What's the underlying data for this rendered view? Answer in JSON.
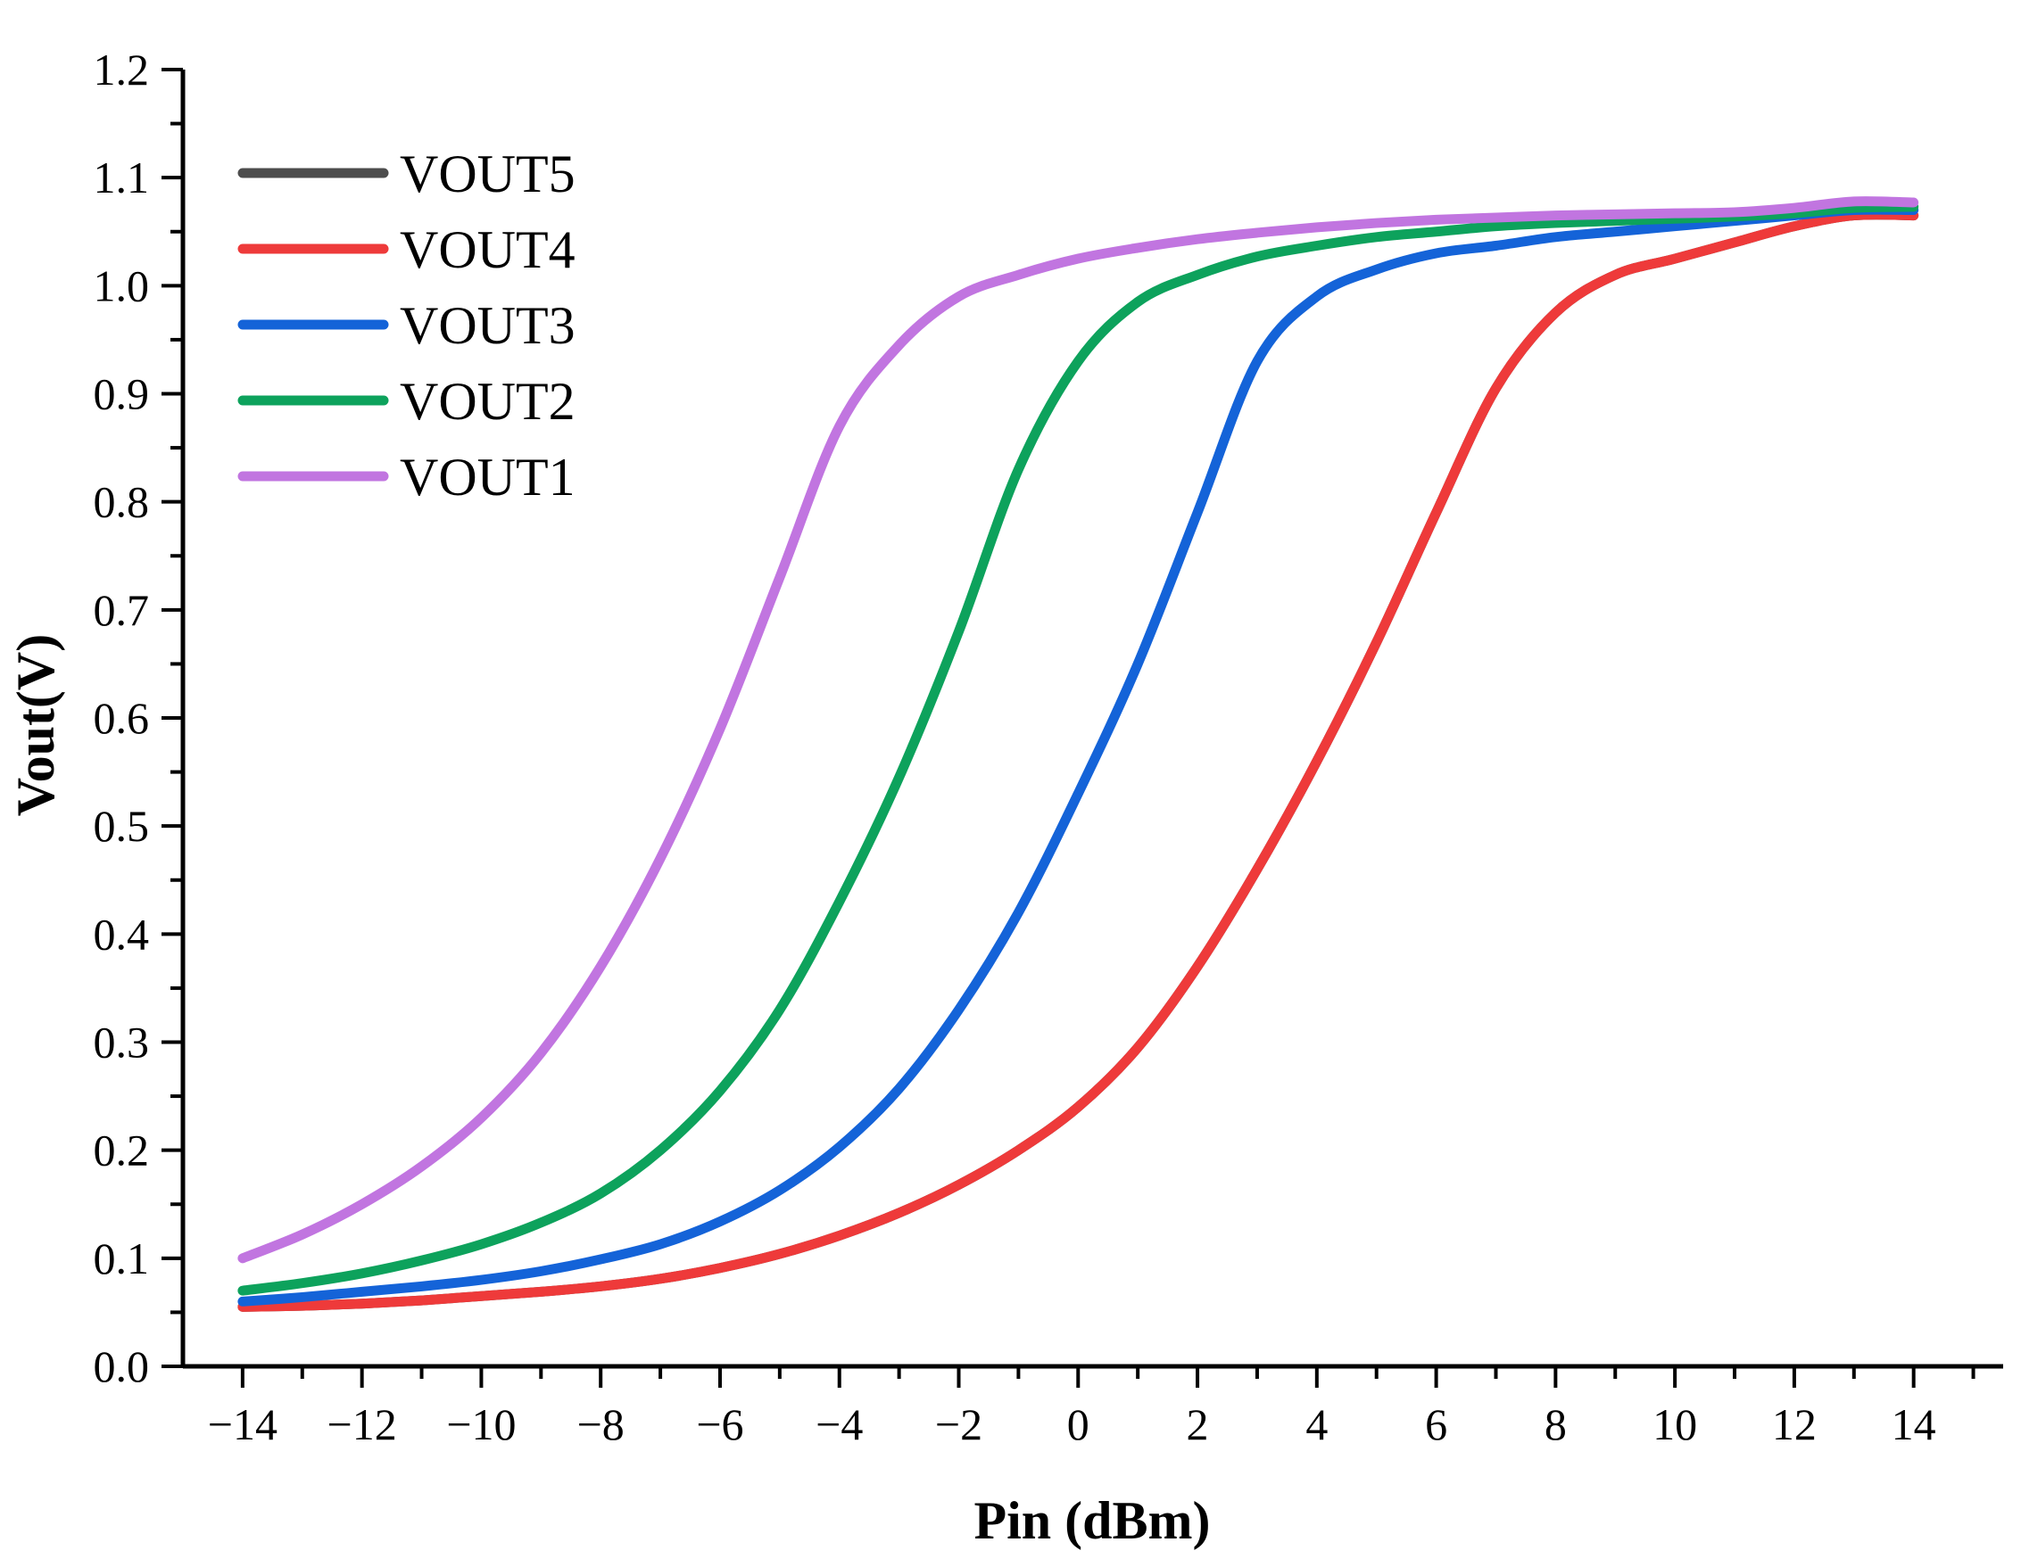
{
  "chart_data": {
    "type": "line",
    "title": "",
    "xlabel": "Pin (dBm)",
    "ylabel": "Vout(V)",
    "xlim": [
      -15,
      15.5
    ],
    "ylim": [
      0.0,
      1.2
    ],
    "xticks": [
      -14,
      -12,
      -10,
      -8,
      -6,
      -4,
      -2,
      0,
      2,
      4,
      6,
      8,
      10,
      12,
      14
    ],
    "xtick_labels": [
      "−14",
      "−12",
      "−10",
      "−8",
      "−6",
      "−4",
      "−2",
      "0",
      "2",
      "4",
      "6",
      "8",
      "10",
      "12",
      "14"
    ],
    "yticks": [
      0.0,
      0.1,
      0.2,
      0.3,
      0.4,
      0.5,
      0.6,
      0.7,
      0.8,
      0.9,
      1.0,
      1.1,
      1.2
    ],
    "ytick_labels": [
      "0.0",
      "0.1",
      "0.2",
      "0.3",
      "0.4",
      "0.5",
      "0.6",
      "0.7",
      "0.8",
      "0.9",
      "1.0",
      "1.1",
      "1.2"
    ],
    "grid": false,
    "legend_position": "top-left",
    "x": [
      -14,
      -13,
      -12,
      -11,
      -10,
      -9,
      -8,
      -7,
      -6,
      -5,
      -4,
      -3,
      -2,
      -1,
      0,
      1,
      2,
      3,
      4,
      5,
      6,
      7,
      8,
      9,
      10,
      11,
      12,
      13,
      14
    ],
    "series": [
      {
        "name": "VOUT5",
        "color": "#4d4d4d",
        "values": [
          0.055,
          0.056,
          0.058,
          0.061,
          0.065,
          0.069,
          0.074,
          0.081,
          0.091,
          0.104,
          0.121,
          0.142,
          0.168,
          0.2,
          0.24,
          0.295,
          0.37,
          0.46,
          0.56,
          0.67,
          0.79,
          0.905,
          0.975,
          1.01,
          1.025,
          1.04,
          1.055,
          1.065,
          1.065
        ]
      },
      {
        "name": "VOUT4",
        "color": "#ee3a3a",
        "values": [
          0.055,
          0.056,
          0.058,
          0.061,
          0.065,
          0.069,
          0.074,
          0.081,
          0.091,
          0.104,
          0.121,
          0.142,
          0.168,
          0.2,
          0.24,
          0.295,
          0.37,
          0.46,
          0.56,
          0.67,
          0.79,
          0.905,
          0.975,
          1.01,
          1.025,
          1.04,
          1.055,
          1.065,
          1.065
        ]
      },
      {
        "name": "VOUT3",
        "color": "#1463d8",
        "values": [
          0.06,
          0.064,
          0.069,
          0.074,
          0.08,
          0.088,
          0.099,
          0.113,
          0.134,
          0.163,
          0.203,
          0.257,
          0.33,
          0.42,
          0.53,
          0.65,
          0.79,
          0.93,
          0.99,
          1.015,
          1.03,
          1.037,
          1.045,
          1.05,
          1.055,
          1.06,
          1.065,
          1.07,
          1.07
        ]
      },
      {
        "name": "VOUT2",
        "color": "#0da25c",
        "values": [
          0.07,
          0.077,
          0.086,
          0.098,
          0.113,
          0.133,
          0.16,
          0.2,
          0.255,
          0.33,
          0.43,
          0.545,
          0.68,
          0.83,
          0.93,
          0.985,
          1.01,
          1.027,
          1.037,
          1.045,
          1.05,
          1.055,
          1.058,
          1.06,
          1.062,
          1.064,
          1.067,
          1.072,
          1.073
        ]
      },
      {
        "name": "VOUT1",
        "color": "#c175e0",
        "values": [
          0.1,
          0.122,
          0.15,
          0.185,
          0.23,
          0.29,
          0.37,
          0.47,
          0.59,
          0.73,
          0.87,
          0.945,
          0.99,
          1.01,
          1.025,
          1.035,
          1.043,
          1.049,
          1.054,
          1.058,
          1.061,
          1.063,
          1.065,
          1.066,
          1.067,
          1.068,
          1.072,
          1.078,
          1.077
        ]
      }
    ],
    "draw_order": [
      "VOUT5",
      "VOUT4",
      "VOUT3",
      "VOUT2",
      "VOUT1"
    ]
  }
}
